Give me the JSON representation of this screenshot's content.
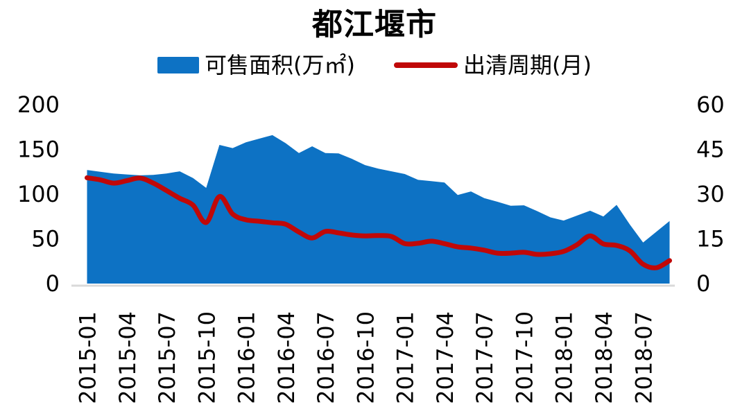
{
  "title": "都江堰市",
  "legend": {
    "items": [
      {
        "label": "可售面积(万㎡)",
        "color": "#0D72C4",
        "type": "area"
      },
      {
        "label": "出清周期(月)",
        "color": "#C00808",
        "type": "line"
      }
    ]
  },
  "colors": {
    "area": "#0D72C4",
    "line": "#C00808",
    "axis_line": "#D9D9D9",
    "text": "#000000",
    "background": "#FFFFFF"
  },
  "chart_data": {
    "type": "area+line combo",
    "title": "都江堰市",
    "grid": false,
    "legend_position": "top-center",
    "x": [
      "2015-01",
      "2015-02",
      "2015-03",
      "2015-04",
      "2015-05",
      "2015-06",
      "2015-07",
      "2015-08",
      "2015-09",
      "2015-10",
      "2015-11",
      "2015-12",
      "2016-01",
      "2016-02",
      "2016-03",
      "2016-04",
      "2016-05",
      "2016-06",
      "2016-07",
      "2016-08",
      "2016-09",
      "2016-10",
      "2016-11",
      "2016-12",
      "2017-01",
      "2017-02",
      "2017-03",
      "2017-04",
      "2017-05",
      "2017-06",
      "2017-07",
      "2017-08",
      "2017-09",
      "2017-10",
      "2017-11",
      "2017-12",
      "2018-01",
      "2018-02",
      "2018-03",
      "2018-04",
      "2018-05",
      "2018-06",
      "2018-07",
      "2018-08",
      "2018-09"
    ],
    "x_tick_labels": [
      "2015-01",
      "2015-04",
      "2015-07",
      "2015-10",
      "2016-01",
      "2016-04",
      "2016-07",
      "2016-10",
      "2017-01",
      "2017-04",
      "2017-07",
      "2017-10",
      "2018-01",
      "2018-04",
      "2018-07"
    ],
    "x_tick_every": 3,
    "left_axis": {
      "range": [
        0,
        200
      ],
      "ticks": [
        0,
        50,
        100,
        150,
        200
      ]
    },
    "right_axis": {
      "range": [
        0,
        60
      ],
      "ticks": [
        0,
        15,
        30,
        45,
        60
      ]
    },
    "series": [
      {
        "name": "可售面积(万㎡)",
        "type": "area",
        "y_axis": "left",
        "color": "#0D72C4",
        "smooth": false,
        "values": [
          127,
          125,
          123,
          122,
          121,
          121.5,
          123,
          125.5,
          118,
          107,
          155,
          151.5,
          158,
          162,
          166,
          157,
          146,
          153.5,
          146,
          145.5,
          139.5,
          132.5,
          128.5,
          125.5,
          122.5,
          116,
          114.5,
          113,
          99,
          103,
          95.5,
          91.5,
          87,
          87.5,
          81,
          74,
          70.5,
          76,
          81.5,
          75,
          88,
          66,
          46,
          58,
          70
        ]
      },
      {
        "name": "出清周期(月)",
        "type": "line",
        "y_axis": "right",
        "color": "#C00808",
        "smooth": true,
        "values": [
          35.5,
          34.8,
          33.7,
          34.5,
          35.4,
          33.7,
          31.2,
          28.6,
          26.3,
          20.5,
          29.2,
          23.3,
          21.4,
          20.9,
          20.4,
          19.9,
          17.3,
          15.3,
          17.5,
          17,
          16.3,
          16,
          16.1,
          15.8,
          13.4,
          13.5,
          14.2,
          13.4,
          12.3,
          11.9,
          11.2,
          10.2,
          10.2,
          10.5,
          9.8,
          10,
          10.8,
          13,
          16,
          13.3,
          12.8,
          11,
          6.5,
          5.3,
          7.7
        ]
      }
    ]
  }
}
